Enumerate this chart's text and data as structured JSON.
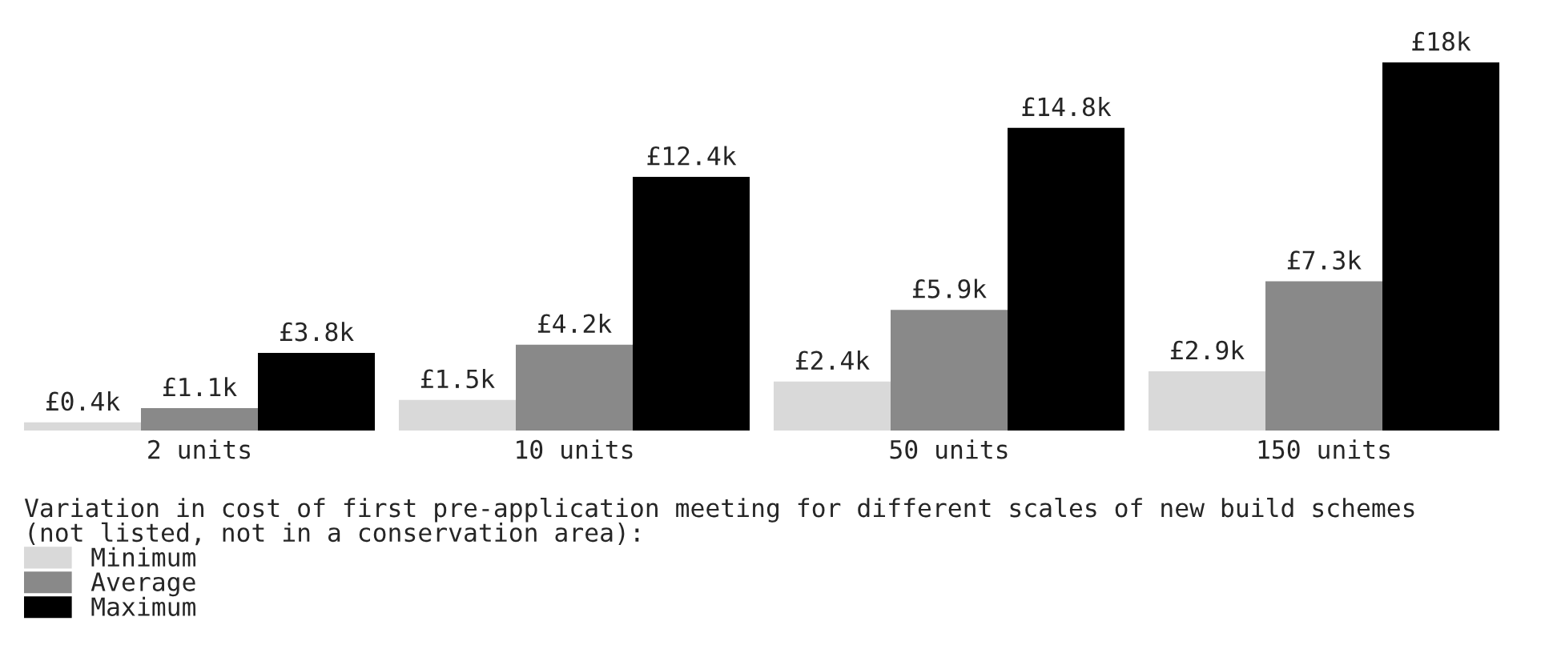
{
  "chart_data": {
    "type": "bar",
    "categories": [
      "2 units",
      "10 units",
      "50 units",
      "150 units"
    ],
    "series": [
      {
        "name": "Minimum",
        "color": "#d9d9d9",
        "values": [
          0.4,
          1.5,
          2.4,
          2.9
        ],
        "value_labels": [
          "£0.4k",
          "£1.5k",
          "£2.4k",
          "£2.9k"
        ]
      },
      {
        "name": "Average",
        "color": "#898989",
        "values": [
          1.1,
          4.2,
          5.9,
          7.3
        ],
        "value_labels": [
          "£1.1k",
          "£4.2k",
          "£5.9k",
          "£7.3k"
        ]
      },
      {
        "name": "Maximum",
        "color": "#000000",
        "values": [
          3.8,
          12.4,
          14.8,
          18
        ],
        "value_labels": [
          "£3.8k",
          "£12.4k",
          "£14.8k",
          "£18k"
        ]
      }
    ],
    "legend_title": "Variation in cost of first pre-application meeting for different scales of new build schemes\n(not listed, not in a conservation area):",
    "legend": "bottom left",
    "tick_labels": "x"
  }
}
